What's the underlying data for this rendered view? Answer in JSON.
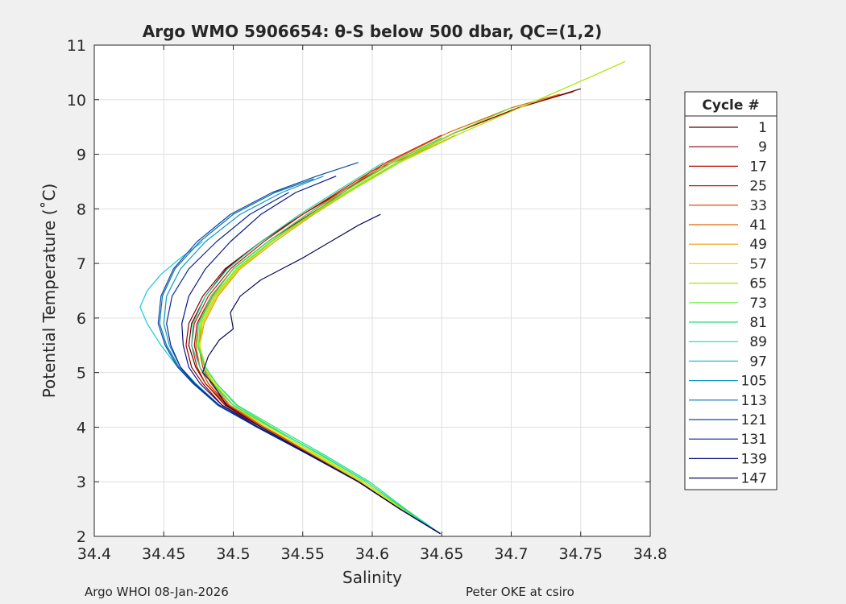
{
  "chart_data": {
    "type": "line",
    "title": "Argo WMO 5906654: θ-S below 500 dbar,  QC=(1,2)",
    "xlabel": "Salinity",
    "ylabel": "Potential Temperature (˚C)",
    "xlim": [
      34.4,
      34.8
    ],
    "ylim": [
      2,
      11
    ],
    "x_ticks": [
      "34.4",
      "34.45",
      "34.5",
      "34.55",
      "34.6",
      "34.65",
      "34.7",
      "34.75",
      "34.8"
    ],
    "y_ticks": [
      "2",
      "3",
      "4",
      "5",
      "6",
      "7",
      "8",
      "9",
      "10",
      "11"
    ],
    "grid": true,
    "legend_position": "right",
    "legend_title": "Cycle #",
    "legend_entries": [
      {
        "label": "1",
        "color": "#5a0000"
      },
      {
        "label": "9",
        "color": "#8c0000"
      },
      {
        "label": "17",
        "color": "#b40000"
      },
      {
        "label": "25",
        "color": "#cc1a00"
      },
      {
        "label": "33",
        "color": "#d83a00"
      },
      {
        "label": "41",
        "color": "#e06600"
      },
      {
        "label": "49",
        "color": "#e8a000"
      },
      {
        "label": "57",
        "color": "#f0e000"
      },
      {
        "label": "65",
        "color": "#a8e600"
      },
      {
        "label": "73",
        "color": "#66ee33"
      },
      {
        "label": "81",
        "color": "#22e27a"
      },
      {
        "label": "89",
        "color": "#14dcae"
      },
      {
        "label": "97",
        "color": "#16c8dc"
      },
      {
        "label": "105",
        "color": "#0e9ac4"
      },
      {
        "label": "113",
        "color": "#0a70b0"
      },
      {
        "label": "121",
        "color": "#0a4aa0"
      },
      {
        "label": "131",
        "color": "#0a2896"
      },
      {
        "label": "139",
        "color": "#0a1488"
      },
      {
        "label": "147",
        "color": "#0a0a5a"
      }
    ],
    "series": [
      {
        "label": "1",
        "color": "#5a0000",
        "x": [
          34.649,
          34.62,
          34.59,
          34.555,
          34.52,
          34.495,
          34.48,
          34.473,
          34.468,
          34.47,
          34.48,
          34.495,
          34.52,
          34.55,
          34.58,
          34.615,
          34.66,
          34.705,
          34.75
        ],
        "y": [
          2.05,
          2.5,
          3.0,
          3.5,
          4.0,
          4.4,
          4.8,
          5.1,
          5.5,
          5.9,
          6.4,
          6.9,
          7.4,
          7.9,
          8.35,
          8.85,
          9.4,
          9.85,
          10.2
        ]
      },
      {
        "label": "9",
        "color": "#8c0000",
        "x": [
          34.649,
          34.62,
          34.59,
          34.555,
          34.52,
          34.492,
          34.478,
          34.47,
          34.466,
          34.468,
          34.478,
          34.494,
          34.52,
          34.55,
          34.58,
          34.615,
          34.66,
          34.705,
          34.745
        ],
        "y": [
          2.05,
          2.5,
          3.0,
          3.5,
          4.0,
          4.4,
          4.8,
          5.1,
          5.5,
          5.9,
          6.4,
          6.9,
          7.4,
          7.9,
          8.35,
          8.85,
          9.4,
          9.85,
          10.15
        ]
      },
      {
        "label": "17",
        "color": "#b40000",
        "x": [
          34.649,
          34.62,
          34.592,
          34.558,
          34.522,
          34.496,
          34.482,
          34.476,
          34.472,
          34.474,
          34.484,
          34.5,
          34.525,
          34.555,
          34.585,
          34.618,
          34.66,
          34.7
        ],
        "y": [
          2.05,
          2.5,
          3.0,
          3.5,
          4.0,
          4.4,
          4.8,
          5.1,
          5.5,
          5.9,
          6.4,
          6.9,
          7.4,
          7.9,
          8.35,
          8.85,
          9.4,
          9.8
        ]
      },
      {
        "label": "25",
        "color": "#cc1a00",
        "x": [
          34.649,
          34.62,
          34.59,
          34.555,
          34.52,
          34.494,
          34.48,
          34.474,
          34.47,
          34.472,
          34.482,
          34.498,
          34.522,
          34.55,
          34.578,
          34.61,
          34.65
        ],
        "y": [
          2.05,
          2.5,
          3.0,
          3.5,
          4.0,
          4.4,
          4.8,
          5.1,
          5.5,
          5.9,
          6.4,
          6.9,
          7.4,
          7.9,
          8.35,
          8.85,
          9.35
        ]
      },
      {
        "label": "33",
        "color": "#d83a00",
        "x": [
          34.649,
          34.62,
          34.591,
          34.557,
          34.522,
          34.497,
          34.484,
          34.478,
          34.475,
          34.478,
          34.488,
          34.504,
          34.528,
          34.556,
          34.582,
          34.6,
          34.63
        ],
        "y": [
          2.05,
          2.5,
          3.0,
          3.5,
          4.0,
          4.4,
          4.8,
          5.1,
          5.5,
          5.9,
          6.4,
          6.9,
          7.4,
          7.9,
          8.35,
          8.7,
          9.0
        ]
      },
      {
        "label": "41",
        "color": "#e06600",
        "x": [
          34.649,
          34.62,
          34.59,
          34.556,
          34.521,
          34.495,
          34.482,
          34.476,
          34.473,
          34.475,
          34.485,
          34.5,
          34.525,
          34.553,
          34.58,
          34.612,
          34.655,
          34.7,
          34.735
        ],
        "y": [
          2.05,
          2.5,
          3.0,
          3.5,
          4.0,
          4.4,
          4.8,
          5.1,
          5.5,
          5.9,
          6.4,
          6.9,
          7.4,
          7.9,
          8.35,
          8.85,
          9.4,
          9.85,
          10.1
        ]
      },
      {
        "label": "49",
        "color": "#e8a000",
        "x": [
          34.649,
          34.621,
          34.592,
          34.558,
          34.524,
          34.498,
          34.485,
          34.479,
          34.476,
          34.479,
          34.489,
          34.505,
          34.53,
          34.558,
          34.586,
          34.618,
          34.66
        ],
        "y": [
          2.05,
          2.5,
          3.0,
          3.5,
          4.0,
          4.4,
          4.8,
          5.1,
          5.5,
          5.9,
          6.4,
          6.9,
          7.4,
          7.9,
          8.35,
          8.85,
          9.35
        ]
      },
      {
        "label": "57",
        "color": "#f0e000",
        "x": [
          34.649,
          34.621,
          34.592,
          34.558,
          34.524,
          34.5,
          34.487,
          34.48,
          34.476,
          34.478,
          34.488,
          34.504,
          34.528,
          34.556,
          34.584,
          34.615,
          34.656
        ],
        "y": [
          2.05,
          2.5,
          3.0,
          3.5,
          4.0,
          4.4,
          4.8,
          5.1,
          5.5,
          5.9,
          6.4,
          6.9,
          7.4,
          7.9,
          8.35,
          8.85,
          9.35
        ]
      },
      {
        "label": "65",
        "color": "#a8e600",
        "x": [
          34.649,
          34.622,
          34.594,
          34.56,
          34.526,
          34.5,
          34.486,
          34.479,
          34.475,
          34.477,
          34.487,
          34.503,
          34.528,
          34.557,
          34.586,
          34.62,
          34.665,
          34.715,
          34.76,
          34.782
        ],
        "y": [
          2.05,
          2.5,
          3.0,
          3.5,
          4.0,
          4.4,
          4.8,
          5.1,
          5.5,
          5.9,
          6.4,
          6.9,
          7.4,
          7.9,
          8.35,
          8.85,
          9.4,
          9.95,
          10.45,
          10.7
        ]
      },
      {
        "label": "73",
        "color": "#66ee33",
        "x": [
          34.649,
          34.623,
          34.596,
          34.562,
          34.528,
          34.502,
          34.488,
          34.48,
          34.475,
          34.476,
          34.486,
          34.502,
          34.527,
          34.556,
          34.585,
          34.618,
          34.66,
          34.7
        ],
        "y": [
          2.05,
          2.5,
          3.0,
          3.5,
          4.0,
          4.4,
          4.8,
          5.1,
          5.5,
          5.9,
          6.4,
          6.9,
          7.4,
          7.9,
          8.35,
          8.85,
          9.4,
          9.85
        ]
      },
      {
        "label": "81",
        "color": "#22e27a",
        "x": [
          34.649,
          34.624,
          34.598,
          34.565,
          34.53,
          34.503,
          34.488,
          34.48,
          34.474,
          34.475,
          34.484,
          34.5,
          34.525,
          34.553,
          34.582,
          34.614,
          34.65
        ],
        "y": [
          2.05,
          2.5,
          3.0,
          3.5,
          4.0,
          4.4,
          4.8,
          5.1,
          5.5,
          5.9,
          6.4,
          6.9,
          7.4,
          7.9,
          8.35,
          8.85,
          9.3
        ]
      },
      {
        "label": "89",
        "color": "#14dcae",
        "x": [
          34.649,
          34.623,
          34.596,
          34.563,
          34.527,
          34.5,
          34.485,
          34.476,
          34.47,
          34.471,
          34.48,
          34.496,
          34.52,
          34.548,
          34.576,
          34.608
        ],
        "y": [
          2.05,
          2.5,
          3.0,
          3.5,
          4.0,
          4.4,
          4.8,
          5.1,
          5.5,
          5.9,
          6.4,
          6.9,
          7.4,
          7.9,
          8.35,
          8.85
        ]
      },
      {
        "label": "97",
        "color": "#16c8dc",
        "x": [
          34.649,
          34.62,
          34.59,
          34.555,
          34.518,
          34.49,
          34.472,
          34.46,
          34.448,
          34.438,
          34.433,
          34.438,
          34.448,
          34.462,
          34.478
        ],
        "y": [
          2.05,
          2.5,
          3.0,
          3.5,
          4.0,
          4.4,
          4.8,
          5.1,
          5.5,
          5.9,
          6.2,
          6.5,
          6.8,
          7.1,
          7.4
        ]
      },
      {
        "label": "105",
        "color": "#0e9ac4",
        "x": [
          34.649,
          34.62,
          34.59,
          34.555,
          34.518,
          34.49,
          34.473,
          34.462,
          34.454,
          34.45,
          34.452,
          34.462,
          34.48,
          34.505,
          34.535,
          34.565
        ],
        "y": [
          2.05,
          2.5,
          3.0,
          3.5,
          4.0,
          4.4,
          4.8,
          5.1,
          5.5,
          5.9,
          6.4,
          6.9,
          7.4,
          7.9,
          8.3,
          8.6
        ]
      },
      {
        "label": "113",
        "color": "#0a70b0",
        "x": [
          34.649,
          34.62,
          34.59,
          34.554,
          34.517,
          34.489,
          34.472,
          34.461,
          34.452,
          34.447,
          34.449,
          34.458,
          34.476,
          34.5,
          34.53,
          34.558
        ],
        "y": [
          2.05,
          2.5,
          3.0,
          3.5,
          4.0,
          4.4,
          4.8,
          5.1,
          5.5,
          5.9,
          6.4,
          6.9,
          7.4,
          7.9,
          8.3,
          8.55
        ]
      },
      {
        "label": "121",
        "color": "#0a4aa0",
        "x": [
          34.649,
          34.62,
          34.59,
          34.554,
          34.517,
          34.489,
          34.471,
          34.46,
          34.451,
          34.446,
          34.448,
          34.457,
          34.474,
          34.498,
          34.528,
          34.56,
          34.59
        ],
        "y": [
          2.05,
          2.5,
          3.0,
          3.5,
          4.0,
          4.4,
          4.8,
          5.1,
          5.5,
          5.9,
          6.4,
          6.9,
          7.4,
          7.9,
          8.3,
          8.6,
          8.85
        ]
      },
      {
        "label": "131",
        "color": "#0a2896",
        "x": [
          34.649,
          34.62,
          34.59,
          34.554,
          34.517,
          34.49,
          34.472,
          34.462,
          34.455,
          34.452,
          34.456,
          34.468,
          34.488,
          34.512,
          34.54
        ],
        "y": [
          2.05,
          2.5,
          3.0,
          3.5,
          4.0,
          4.4,
          4.8,
          5.1,
          5.5,
          5.9,
          6.4,
          6.9,
          7.4,
          7.9,
          8.3
        ]
      },
      {
        "label": "139",
        "color": "#0a1488",
        "x": [
          34.649,
          34.62,
          34.59,
          34.554,
          34.518,
          34.492,
          34.476,
          34.468,
          34.464,
          34.463,
          34.468,
          34.48,
          34.498,
          34.52,
          34.545,
          34.574
        ],
        "y": [
          2.05,
          2.5,
          3.0,
          3.5,
          4.0,
          4.4,
          4.8,
          5.1,
          5.5,
          5.9,
          6.4,
          6.9,
          7.4,
          7.9,
          8.3,
          8.6
        ]
      },
      {
        "label": "147",
        "color": "#0a0a5a",
        "x": [
          34.649,
          34.62,
          34.59,
          34.555,
          34.52,
          34.495,
          34.485,
          34.478,
          34.482,
          34.49,
          34.5,
          34.498,
          34.505,
          34.52,
          34.535,
          34.55,
          34.57,
          34.59,
          34.606
        ],
        "y": [
          2.05,
          2.5,
          3.0,
          3.5,
          4.0,
          4.4,
          4.8,
          5.0,
          5.3,
          5.6,
          5.8,
          6.1,
          6.4,
          6.7,
          6.9,
          7.1,
          7.4,
          7.7,
          7.9
        ]
      }
    ]
  },
  "footer": {
    "left_text": "Argo WHOI 08-Jan-2026",
    "right_text": "Peter OKE at csiro"
  }
}
